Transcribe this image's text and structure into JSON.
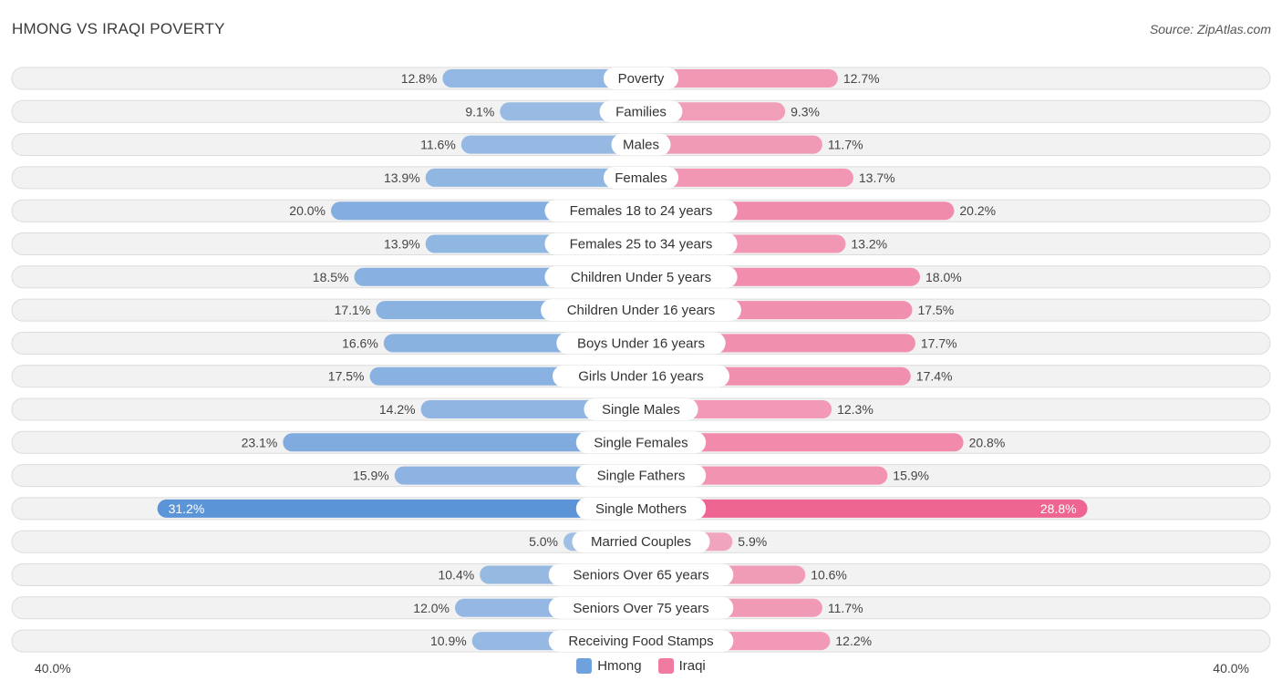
{
  "header": {
    "title": "HMONG VS IRAQI POVERTY",
    "source": "Source: ZipAtlas.com"
  },
  "colors": {
    "hmong": "#6fa1dc",
    "iraqi": "#f07aa0",
    "hmong_strong": "#5b95d8",
    "iraqi_strong": "#ee6592",
    "row_bg": "#f2f2f2",
    "row_border": "#dcdcdc"
  },
  "axis": {
    "left_label": "40.0%",
    "right_label": "40.0%"
  },
  "legend": {
    "hmong": "Hmong",
    "iraqi": "Iraqi"
  },
  "chart_data": {
    "type": "bar",
    "orientation": "horizontal-diverging",
    "title": "HMONG VS IRAQI POVERTY",
    "xlim": [
      -40,
      40
    ],
    "categories": [
      "Poverty",
      "Families",
      "Males",
      "Females",
      "Females 18 to 24 years",
      "Females 25 to 34 years",
      "Children Under 5 years",
      "Children Under 16 years",
      "Boys Under 16 years",
      "Girls Under 16 years",
      "Single Males",
      "Single Females",
      "Single Fathers",
      "Single Mothers",
      "Married Couples",
      "Seniors Over 65 years",
      "Seniors Over 75 years",
      "Receiving Food Stamps"
    ],
    "series": [
      {
        "name": "Hmong",
        "values": [
          12.8,
          9.1,
          11.6,
          13.9,
          20.0,
          13.9,
          18.5,
          17.1,
          16.6,
          17.5,
          14.2,
          23.1,
          15.9,
          31.2,
          5.0,
          10.4,
          12.0,
          10.9
        ],
        "labels": [
          "12.8%",
          "9.1%",
          "11.6%",
          "13.9%",
          "20.0%",
          "13.9%",
          "18.5%",
          "17.1%",
          "16.6%",
          "17.5%",
          "14.2%",
          "23.1%",
          "15.9%",
          "31.2%",
          "5.0%",
          "10.4%",
          "12.0%",
          "10.9%"
        ]
      },
      {
        "name": "Iraqi",
        "values": [
          12.7,
          9.3,
          11.7,
          13.7,
          20.2,
          13.2,
          18.0,
          17.5,
          17.7,
          17.4,
          12.3,
          20.8,
          15.9,
          28.8,
          5.9,
          10.6,
          11.7,
          12.2
        ],
        "labels": [
          "12.7%",
          "9.3%",
          "11.7%",
          "13.7%",
          "20.2%",
          "13.2%",
          "18.0%",
          "17.5%",
          "17.7%",
          "17.4%",
          "12.3%",
          "20.8%",
          "15.9%",
          "28.8%",
          "5.9%",
          "10.6%",
          "11.7%",
          "12.2%"
        ]
      }
    ]
  }
}
